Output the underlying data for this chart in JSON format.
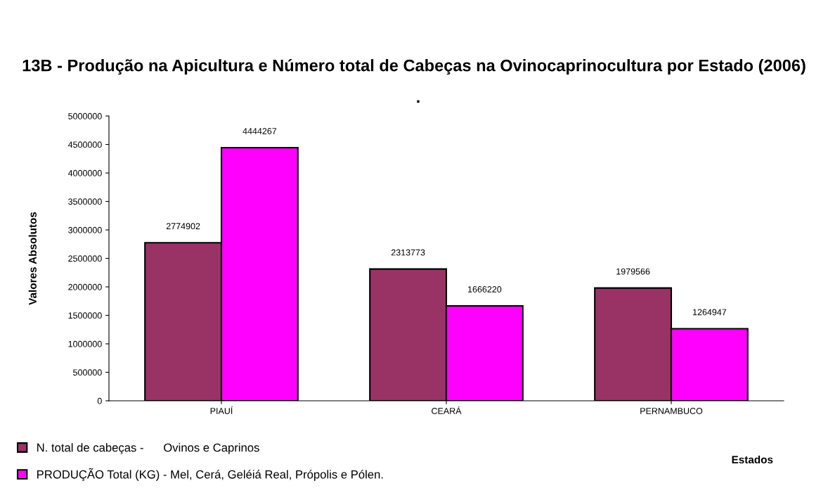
{
  "chart_data": {
    "type": "bar",
    "title": "13B - Produção na Apicultura e Número total de Cabeças na Ovinocaprinocultura por Estado (2006)",
    "subtitle": ".",
    "xlabel": "Estados",
    "ylabel": "Valores Absolutos",
    "categories": [
      "PIAUÍ",
      "CEARÁ",
      "PERNAMBUCO"
    ],
    "series": [
      {
        "name": "N. total de cabeças -      Ovinos e Caprinos",
        "color": "#993366",
        "values": [
          2774902,
          2313773,
          1979566
        ]
      },
      {
        "name": "PRODUÇÃO Total (KG) - Mel, Cerá, Geléiá Real, Própolis e Pólen.",
        "color": "#ff00ff",
        "values": [
          4444267,
          1666220,
          1264947
        ]
      }
    ],
    "ylim": [
      0,
      5000000
    ],
    "yticks": [
      0,
      500000,
      1000000,
      1500000,
      2000000,
      2500000,
      3000000,
      3500000,
      4000000,
      4500000,
      5000000
    ],
    "grid": false,
    "legend": "bottom left",
    "data_labels": true
  }
}
